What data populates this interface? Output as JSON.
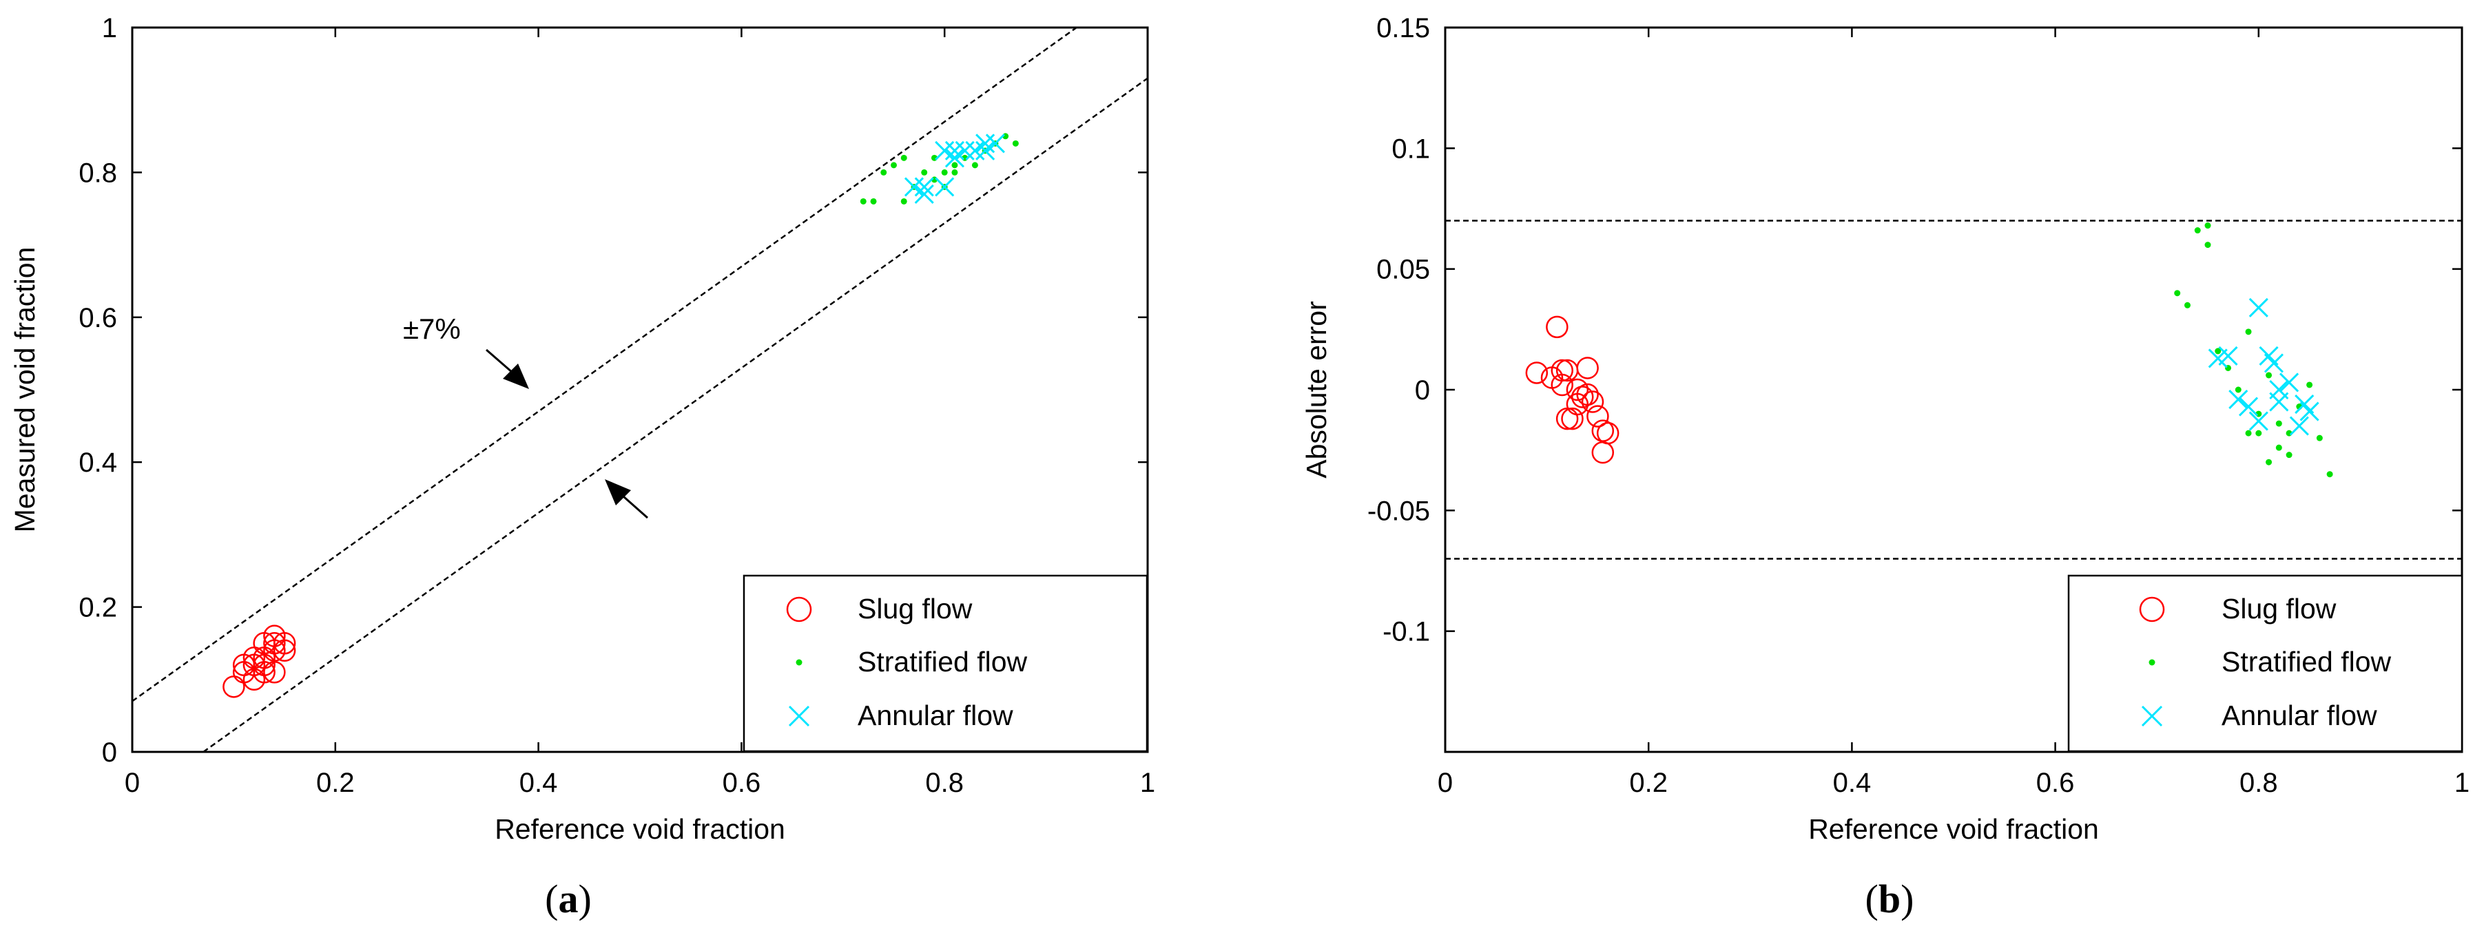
{
  "colors": {
    "slug": "#ff0000",
    "stratified": "#00e000",
    "annular": "#00e5ff",
    "axis": "#000000"
  },
  "legend": {
    "slug": "Slug flow",
    "stratified": "Stratified flow",
    "annular": "Annular flow"
  },
  "panels": {
    "a": {
      "open": "(",
      "letter": "a",
      "close": ")"
    },
    "b": {
      "open": "(",
      "letter": "b",
      "close": ")"
    }
  },
  "chart_data": [
    {
      "type": "scatter",
      "id": "a",
      "xlabel": "Reference void fraction",
      "ylabel": "Measured void fraction",
      "xlim": [
        0,
        1
      ],
      "ylim": [
        0,
        1
      ],
      "xticks": [
        0,
        0.2,
        0.4,
        0.6,
        0.8,
        1
      ],
      "xtick_labels": [
        "0",
        "0.2",
        "0.4",
        "0.6",
        "0.8",
        "1"
      ],
      "yticks": [
        0,
        0.2,
        0.4,
        0.6,
        0.8,
        1
      ],
      "ytick_labels": [
        "0",
        "0.2",
        "0.4",
        "0.6",
        "0.8",
        "1"
      ],
      "legend_position": "bottom-right",
      "annotation": "±7%",
      "reference_lines": [
        {
          "name": "upper",
          "x": [
            0,
            0.93
          ],
          "y": [
            0.07,
            1.0
          ]
        },
        {
          "name": "lower",
          "x": [
            0.07,
            1.0
          ],
          "y": [
            0,
            0.93
          ]
        }
      ],
      "series": [
        {
          "name": "Slug flow",
          "marker": "circle",
          "x": [
            0.1,
            0.11,
            0.12,
            0.12,
            0.13,
            0.13,
            0.13,
            0.14,
            0.14,
            0.14,
            0.15,
            0.12,
            0.13,
            0.15,
            0.11,
            0.14
          ],
          "y": [
            0.09,
            0.11,
            0.1,
            0.12,
            0.12,
            0.13,
            0.15,
            0.11,
            0.14,
            0.15,
            0.14,
            0.13,
            0.11,
            0.15,
            0.12,
            0.16
          ]
        },
        {
          "name": "Stratified flow",
          "marker": "dot",
          "x": [
            0.72,
            0.73,
            0.74,
            0.75,
            0.76,
            0.76,
            0.77,
            0.78,
            0.79,
            0.8,
            0.8,
            0.81,
            0.82,
            0.83,
            0.84,
            0.85,
            0.86,
            0.87,
            0.79,
            0.81
          ],
          "y": [
            0.76,
            0.76,
            0.8,
            0.81,
            0.82,
            0.76,
            0.78,
            0.8,
            0.79,
            0.78,
            0.8,
            0.81,
            0.82,
            0.81,
            0.83,
            0.84,
            0.85,
            0.84,
            0.82,
            0.8
          ],
          "color": "stratified"
        },
        {
          "name": "Annular flow",
          "marker": "x",
          "x": [
            0.77,
            0.78,
            0.8,
            0.8,
            0.81,
            0.82,
            0.83,
            0.84,
            0.85,
            0.81,
            0.78,
            0.84
          ],
          "y": [
            0.78,
            0.78,
            0.78,
            0.83,
            0.82,
            0.83,
            0.83,
            0.84,
            0.84,
            0.83,
            0.77,
            0.83
          ]
        }
      ]
    },
    {
      "type": "scatter",
      "id": "b",
      "xlabel": "Reference void fraction",
      "ylabel": "Absolute error",
      "xlim": [
        0,
        1
      ],
      "ylim": [
        -0.15,
        0.15
      ],
      "xticks": [
        0,
        0.2,
        0.4,
        0.6,
        0.8,
        1
      ],
      "xtick_labels": [
        "0",
        "0.2",
        "0.4",
        "0.6",
        "0.8",
        "1"
      ],
      "yticks": [
        -0.1,
        -0.05,
        0,
        0.05,
        0.1,
        0.15
      ],
      "ytick_labels": [
        "-0.1",
        "-0.05",
        "0",
        "0.05",
        "0.1",
        "0.15"
      ],
      "legend_position": "bottom-right",
      "reference_lines": [
        {
          "name": "upper",
          "x": [
            0,
            1
          ],
          "y": [
            0.07,
            0.07
          ]
        },
        {
          "name": "lower",
          "x": [
            0,
            1
          ],
          "y": [
            -0.07,
            -0.07
          ]
        }
      ],
      "series": [
        {
          "name": "Slug flow",
          "marker": "circle",
          "x": [
            0.09,
            0.105,
            0.11,
            0.115,
            0.115,
            0.12,
            0.125,
            0.13,
            0.13,
            0.135,
            0.14,
            0.14,
            0.145,
            0.15,
            0.155,
            0.155,
            0.16,
            0.12
          ],
          "y": [
            0.007,
            0.005,
            0.026,
            0.008,
            0.002,
            -0.012,
            -0.012,
            0.0,
            -0.006,
            -0.003,
            0.009,
            -0.002,
            -0.005,
            -0.011,
            -0.017,
            -0.026,
            -0.018,
            0.008
          ]
        },
        {
          "name": "Stratified flow",
          "marker": "dot",
          "x": [
            0.72,
            0.73,
            0.74,
            0.75,
            0.75,
            0.76,
            0.77,
            0.78,
            0.79,
            0.79,
            0.8,
            0.8,
            0.81,
            0.82,
            0.82,
            0.83,
            0.84,
            0.85,
            0.86,
            0.87,
            0.81,
            0.83
          ],
          "y": [
            0.04,
            0.035,
            0.066,
            0.068,
            0.06,
            0.016,
            0.009,
            0.0,
            0.024,
            -0.018,
            -0.01,
            -0.018,
            -0.03,
            -0.024,
            -0.014,
            -0.018,
            -0.007,
            0.002,
            -0.02,
            -0.035,
            0.006,
            -0.027
          ]
        },
        {
          "name": "Annular flow",
          "marker": "x",
          "x": [
            0.76,
            0.77,
            0.78,
            0.79,
            0.8,
            0.8,
            0.81,
            0.815,
            0.82,
            0.83,
            0.84,
            0.845,
            0.85,
            0.82
          ],
          "y": [
            0.013,
            0.014,
            -0.004,
            -0.007,
            -0.013,
            0.034,
            0.014,
            0.011,
            -0.005,
            0.003,
            -0.015,
            -0.006,
            -0.009,
            0.0
          ]
        }
      ]
    }
  ]
}
